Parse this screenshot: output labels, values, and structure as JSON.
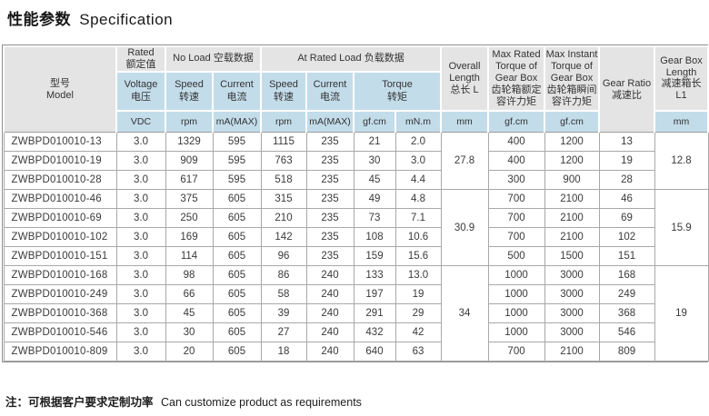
{
  "title": {
    "zh": "性能参数",
    "en": "Specification"
  },
  "note": {
    "zh": "注：可根据客户要求定制功率",
    "en": "Can customize product as requirements"
  },
  "colors": {
    "header_gray": "#e4e4e4",
    "header_blue": "#c3dcea",
    "border": "#a8a8a8",
    "text": "#3a3a3a"
  },
  "table": {
    "headers": {
      "model": "型号\nModel",
      "rated": "Rated\n额定值",
      "no_load": "No Load 空载数据",
      "at_rated_load": "At Rated Load 负载数据",
      "voltage": "Voltage\n电压",
      "speed": "Speed\n转速",
      "current": "Current\n电流",
      "torque": "Torque\n转矩",
      "overall_length": "Overall\nLength\n总长 L",
      "max_rated": "Max Rated\nTorque of\nGear Box\n齿轮箱额定\n容许力矩",
      "max_instant": "Max Instant\nTorque of\nGear Box\n齿轮箱瞬间\n容许力矩",
      "gear_ratio": "Gear Ratio\n减速比",
      "gearbox_length": "Gear Box\nLength\n减速箱长\nL1"
    },
    "units": {
      "voltage": "VDC",
      "speed": "rpm",
      "current": "mA(MAX)",
      "torque_gfcm": "gf.cm",
      "torque_mnm": "mN.m",
      "length_mm": "mm",
      "box_torque": "gf.cm"
    },
    "rows": [
      [
        "ZWBPD010010-13",
        "3.0",
        "1329",
        "595",
        "1115",
        "235",
        "21",
        "2.0",
        "400",
        "1200",
        "13"
      ],
      [
        "ZWBPD010010-19",
        "3.0",
        "909",
        "595",
        "763",
        "235",
        "30",
        "3.0",
        "400",
        "1200",
        "19"
      ],
      [
        "ZWBPD010010-28",
        "3.0",
        "617",
        "595",
        "518",
        "235",
        "45",
        "4.4",
        "300",
        "900",
        "28"
      ],
      [
        "ZWBPD010010-46",
        "3.0",
        "375",
        "605",
        "315",
        "235",
        "49",
        "4.8",
        "700",
        "2100",
        "46"
      ],
      [
        "ZWBPD010010-69",
        "3.0",
        "250",
        "605",
        "210",
        "235",
        "73",
        "7.1",
        "700",
        "2100",
        "69"
      ],
      [
        "ZWBPD010010-102",
        "3.0",
        "169",
        "605",
        "142",
        "235",
        "108",
        "10.6",
        "700",
        "2100",
        "102"
      ],
      [
        "ZWBPD010010-151",
        "3.0",
        "114",
        "605",
        "96",
        "235",
        "159",
        "15.6",
        "500",
        "1500",
        "151"
      ],
      [
        "ZWBPD010010-168",
        "3.0",
        "98",
        "605",
        "86",
        "240",
        "133",
        "13.0",
        "1000",
        "3000",
        "168"
      ],
      [
        "ZWBPD010010-249",
        "3.0",
        "66",
        "605",
        "58",
        "240",
        "197",
        "19",
        "1000",
        "3000",
        "249"
      ],
      [
        "ZWBPD010010-368",
        "3.0",
        "45",
        "605",
        "39",
        "240",
        "291",
        "29",
        "1000",
        "3000",
        "368"
      ],
      [
        "ZWBPD010010-546",
        "3.0",
        "30",
        "605",
        "27",
        "240",
        "432",
        "42",
        "1000",
        "3000",
        "546"
      ],
      [
        "ZWBPD010010-809",
        "3.0",
        "20",
        "605",
        "18",
        "240",
        "640",
        "63",
        "700",
        "2100",
        "809"
      ]
    ],
    "merged": {
      "overall_length": [
        {
          "rowspan": 3,
          "value": "27.8"
        },
        {
          "rowspan": 4,
          "value": "30.9"
        },
        {
          "rowspan": 5,
          "value": "34"
        }
      ],
      "gearbox_length": [
        {
          "rowspan": 3,
          "value": "12.8"
        },
        {
          "rowspan": 4,
          "value": "15.9"
        },
        {
          "rowspan": 5,
          "value": "19"
        }
      ]
    }
  }
}
